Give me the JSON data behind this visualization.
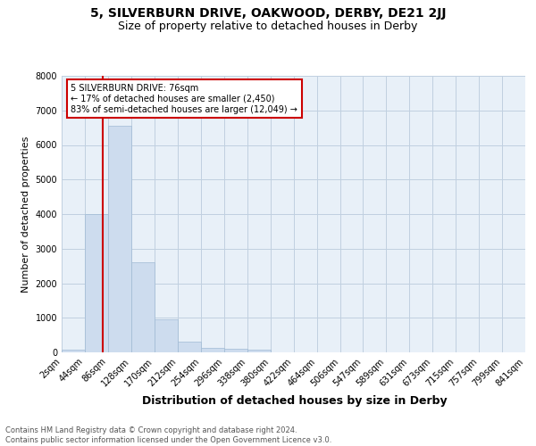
{
  "title": "5, SILVERBURN DRIVE, OAKWOOD, DERBY, DE21 2JJ",
  "subtitle": "Size of property relative to detached houses in Derby",
  "xlabel": "Distribution of detached houses by size in Derby",
  "ylabel": "Number of detached properties",
  "bar_values": [
    75,
    4000,
    6550,
    2600,
    950,
    300,
    130,
    100,
    80,
    0,
    0,
    0,
    0,
    0,
    0,
    0,
    0,
    0,
    0,
    0
  ],
  "bin_edges": [
    2,
    44,
    86,
    128,
    170,
    212,
    254,
    296,
    338,
    380,
    422,
    464,
    506,
    547,
    589,
    631,
    673,
    715,
    757,
    799,
    841
  ],
  "xlabels": [
    "2sqm",
    "44sqm",
    "86sqm",
    "128sqm",
    "170sqm",
    "212sqm",
    "254sqm",
    "296sqm",
    "338sqm",
    "380sqm",
    "422sqm",
    "464sqm",
    "506sqm",
    "547sqm",
    "589sqm",
    "631sqm",
    "673sqm",
    "715sqm",
    "757sqm",
    "799sqm",
    "841sqm"
  ],
  "bar_color": "#cddcee",
  "bar_edge_color": "#a0bad4",
  "property_line_x": 76,
  "property_line_color": "#cc0000",
  "annotation_text": "5 SILVERBURN DRIVE: 76sqm\n← 17% of detached houses are smaller (2,450)\n83% of semi-detached houses are larger (12,049) →",
  "annotation_box_color": "#cc0000",
  "annotation_text_color": "#000000",
  "ylim": [
    0,
    8000
  ],
  "yticks": [
    0,
    1000,
    2000,
    3000,
    4000,
    5000,
    6000,
    7000,
    8000
  ],
  "grid_color": "#c0d0e0",
  "background_color": "#e8f0f8",
  "footer_text": "Contains HM Land Registry data © Crown copyright and database right 2024.\nContains public sector information licensed under the Open Government Licence v3.0.",
  "title_fontsize": 10,
  "subtitle_fontsize": 9,
  "ylabel_fontsize": 8,
  "xlabel_fontsize": 9,
  "tick_fontsize": 7,
  "footer_fontsize": 6,
  "ann_fontsize": 7
}
